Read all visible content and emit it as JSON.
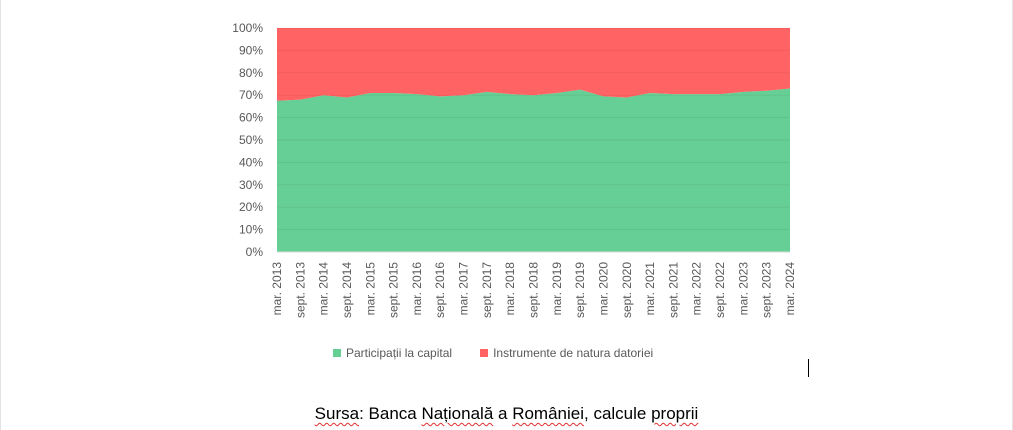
{
  "chart_data": {
    "type": "area",
    "stacked": "percent",
    "x": [
      "mar. 2013",
      "sept. 2013",
      "mar. 2014",
      "sept. 2014",
      "mar. 2015",
      "sept. 2015",
      "mar. 2016",
      "sept. 2016",
      "mar. 2017",
      "sept. 2017",
      "mar. 2018",
      "sept. 2018",
      "mar. 2019",
      "sept. 2019",
      "mar. 2020",
      "sept. 2020",
      "mar. 2021",
      "sept. 2021",
      "mar. 2022",
      "sept. 2022",
      "mar. 2023",
      "sept. 2023",
      "mar. 2024"
    ],
    "x_tick_labels": [
      "mar. 2013",
      "sept. 2013",
      "mar. 2014",
      "sept. 2014",
      "mar. 2015",
      "sept. 2015",
      "mar. 2016",
      "sept. 2016",
      "mar. 2017",
      "sept. 2017",
      "mar. 2018",
      "sept. 2018",
      "mar. 2019",
      "sept. 2019",
      "mar. 2020",
      "sept. 2020",
      "mar. 2021",
      "sept. 2021",
      "mar. 2022",
      "sept. 2022",
      "mar. 2023",
      "sept. 2023",
      "mar. 2024"
    ],
    "series": [
      {
        "name": "Participații la capital",
        "color": "#66cf95",
        "values": [
          67.5,
          68,
          70,
          69,
          71,
          71,
          70.5,
          69.5,
          70,
          71.5,
          70.5,
          70,
          71,
          72.5,
          69.5,
          69,
          71,
          70.5,
          70.5,
          70.5,
          71.5,
          72,
          73
        ]
      },
      {
        "name": "Instrumente de natura datoriei",
        "color": "#ff6363",
        "values": [
          32.5,
          32,
          30,
          31,
          29,
          29,
          29.5,
          30.5,
          30,
          28.5,
          29.5,
          30,
          29,
          27.5,
          30.5,
          31,
          29,
          29.5,
          29.5,
          29.5,
          28.5,
          28,
          27
        ]
      }
    ],
    "y_ticks": [
      "0%",
      "10%",
      "20%",
      "30%",
      "40%",
      "50%",
      "60%",
      "70%",
      "80%",
      "90%",
      "100%"
    ],
    "ylim": [
      0,
      100
    ],
    "grid": true,
    "legend": "bottom"
  },
  "legend": {
    "items": [
      {
        "label": "Participații la capital",
        "color": "#66cf95"
      },
      {
        "label": "Instrumente de natura datoriei",
        "color": "#ff6363"
      }
    ]
  },
  "caption": {
    "w1": "Sursa",
    "t1": ": Banca ",
    "w2": "Națională",
    "t2": " a ",
    "w3": "României",
    "t3": ", calcule ",
    "w4": "proprii"
  }
}
